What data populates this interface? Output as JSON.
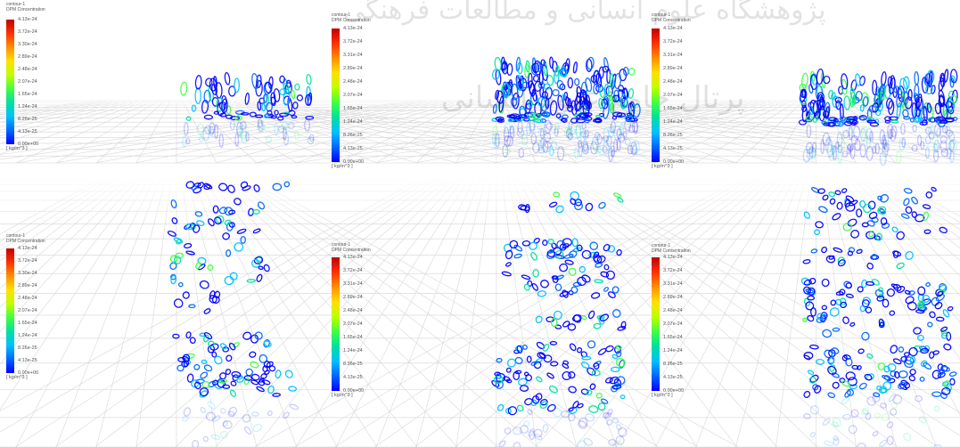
{
  "panels": [
    {
      "id": "top-1",
      "variant": "top",
      "legend": {
        "title1": "contour-1",
        "title2": "DPM Concentration",
        "unit": "[ kg/m^3 ]",
        "ticks": [
          "4.13e-24",
          "3.72e-24",
          "3.30e-24",
          "2.89e-24",
          "2.48e-24",
          "2.07e-24",
          "1.65e-24",
          "1.24e-24",
          "8.26e-25",
          "4.13e-25",
          "0.00e+00"
        ]
      }
    },
    {
      "id": "top-2",
      "variant": "top",
      "legend": {
        "title1": "contour-1",
        "title2": "DPM Concentration",
        "unit": "[ kg/m^3 ]",
        "ticks": [
          "4.13e-24",
          "3.72e-24",
          "3.31e-24",
          "2.89e-24",
          "2.48e-24",
          "2.07e-24",
          "1.65e-24",
          "1.24e-24",
          "8.26e-25",
          "4.13e-25",
          "0.00e+00"
        ]
      }
    },
    {
      "id": "top-3",
      "variant": "top",
      "legend": {
        "title1": "contour-1",
        "title2": "DPM Concentration",
        "unit": "[ kg/m^3 ]",
        "ticks": [
          "4.13e-24",
          "3.72e-24",
          "3.31e-24",
          "2.89e-24",
          "2.48e-24",
          "2.07e-24",
          "1.65e-24",
          "1.24e-24",
          "8.26e-25",
          "4.13e-25",
          "0.00e+00"
        ]
      }
    },
    {
      "id": "bottom-1",
      "variant": "bottom",
      "legend": {
        "title1": "contour-1",
        "title2": "DPM Concentration",
        "unit": "[ kg/m^3 ]",
        "ticks": [
          "4.13e-24",
          "3.72e-24",
          "3.30e-24",
          "2.89e-24",
          "2.48e-24",
          "2.07e-24",
          "1.65e-24",
          "1.24e-24",
          "8.26e-25",
          "4.13e-25",
          "0.00e+00"
        ]
      }
    },
    {
      "id": "bottom-2",
      "variant": "bottom",
      "legend": {
        "title1": "contour-1",
        "title2": "DPM Concentration",
        "unit": "[ kg/m^3 ]",
        "ticks": [
          "4.13e-24",
          "3.72e-24",
          "3.31e-24",
          "2.89e-24",
          "2.48e-24",
          "2.07e-24",
          "1.65e-24",
          "1.24e-24",
          "8.26e-25",
          "4.13e-25",
          "0.00e+00"
        ]
      }
    },
    {
      "id": "bottom-3",
      "variant": "bottom",
      "legend": {
        "title1": "contour-1",
        "title2": "DPM Concentration",
        "unit": "[ kg/m^3 ]",
        "ticks": [
          "4.13e-24",
          "3.72e-24",
          "3.31e-24",
          "2.89e-24",
          "2.48e-24",
          "2.07e-24",
          "1.65e-24",
          "1.24e-24",
          "8.26e-25",
          "4.13e-25",
          "0.00e+00"
        ]
      }
    }
  ],
  "colormap": [
    "#0000ff",
    "#0066ff",
    "#00c0ff",
    "#00e0a0",
    "#40ff40",
    "#c0ff00",
    "#ffe000",
    "#ff9000",
    "#ff3000",
    "#c00000"
  ],
  "watermark": {
    "line1": "پژوهشگاه علوم انسانی و مطالعات فرهنگی",
    "line2": "پرتال جامع علوم انسانی"
  }
}
